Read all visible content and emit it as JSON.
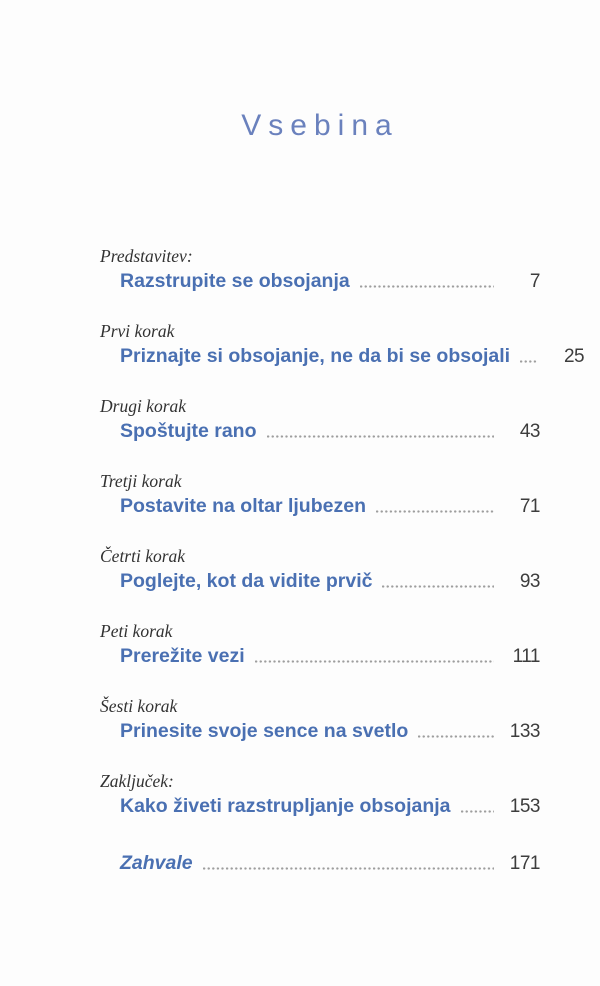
{
  "page": {
    "title": "Vsebina"
  },
  "toc": {
    "entries": [
      {
        "label": "Predstavitev:",
        "title": "Razstrupite se obsojanja",
        "page": "7"
      },
      {
        "label": "Prvi korak",
        "title": "Priznajte si obsojanje, ne da bi se obsojali",
        "page": "25"
      },
      {
        "label": "Drugi korak",
        "title": "Spoštujte rano",
        "page": "43"
      },
      {
        "label": "Tretji korak",
        "title": "Postavite na oltar ljubezen",
        "page": "71"
      },
      {
        "label": "Četrti korak",
        "title": "Poglejte, kot da vidite prvič",
        "page": "93"
      },
      {
        "label": "Peti korak",
        "title": "Prerežite vezi",
        "page": "111"
      },
      {
        "label": "Šesti korak",
        "title": "Prinesite svoje sence na svetlo",
        "page": "133"
      },
      {
        "label": "Zaključek:",
        "title": "Kako živeti razstrupljanje obsojanja",
        "page": "153"
      },
      {
        "label": "",
        "title": "Zahvale",
        "page": "171",
        "title_style": "italic"
      }
    ]
  },
  "colors": {
    "heading_blue": "#6a81bd",
    "entry_blue": "#4a70b2",
    "label_dark": "#323232",
    "leader_gray": "#9e9e9e",
    "page_num_dark": "#3d3d3d",
    "paper": "#fdfdfd"
  }
}
